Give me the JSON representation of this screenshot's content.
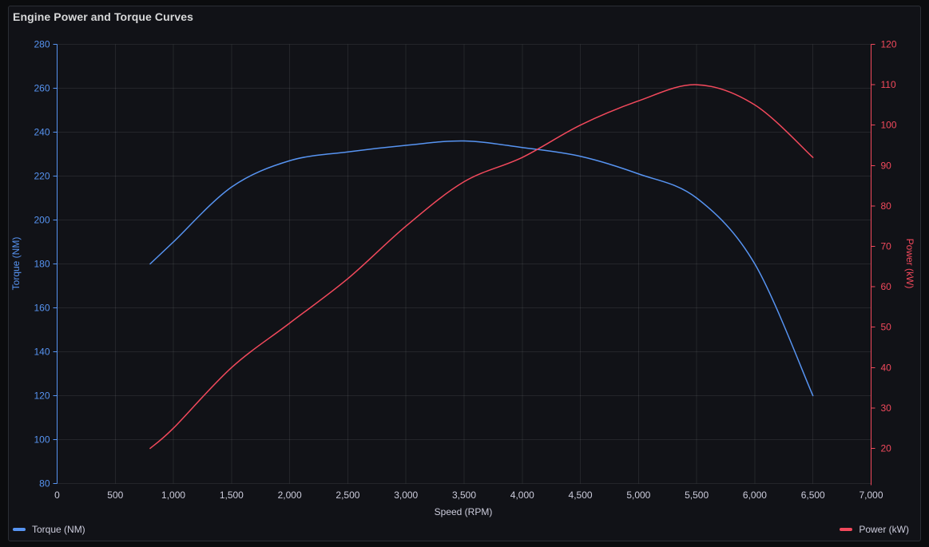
{
  "panel": {
    "title": "Engine Power and Torque Curves"
  },
  "colors": {
    "background_outer": "#0B0C0E",
    "background_panel": "#111217",
    "panel_border": "#2B2E35",
    "grid": "rgba(204,204,220,0.10)",
    "text": "#CCCCDC",
    "title_text": "#D8D9DA",
    "torque_series": "#5794F2",
    "power_series": "#F2495C"
  },
  "legend": {
    "items": [
      {
        "label": "Torque (NM)",
        "color": "#5794F2",
        "marker": "dash-icon"
      },
      {
        "label": "Power (kW)",
        "color": "#F2495C",
        "marker": "dash-icon"
      }
    ]
  },
  "chart_data": {
    "type": "line",
    "title": "Engine Power and Torque Curves",
    "xlabel": "Speed (RPM)",
    "grid": true,
    "legend_position": "bottom",
    "x": [
      800,
      1000,
      1500,
      2000,
      2500,
      3000,
      3500,
      4000,
      4500,
      5000,
      5500,
      6000,
      6500
    ],
    "series": [
      {
        "name": "Torque (NM)",
        "yaxis": "left",
        "color": "#5794F2",
        "values": [
          180,
          190,
          215,
          227,
          231,
          234,
          236,
          233,
          229,
          221,
          210,
          180,
          120
        ]
      },
      {
        "name": "Power (kW)",
        "yaxis": "right",
        "color": "#F2495C",
        "values": [
          20,
          25,
          40,
          51,
          62,
          75,
          86,
          92,
          100,
          106,
          110,
          105,
          92
        ]
      }
    ],
    "x_axis": {
      "label": "Speed (RPM)",
      "min": 0,
      "max": 7000,
      "tick_values": [
        0,
        500,
        1000,
        1500,
        2000,
        2500,
        3000,
        3500,
        4000,
        4500,
        5000,
        5500,
        6000,
        6500,
        7000
      ],
      "tick_labels": [
        "0",
        "500",
        "1,000",
        "1,500",
        "2,000",
        "2,500",
        "3,000",
        "3,500",
        "4,000",
        "4,500",
        "5,000",
        "5,500",
        "6,000",
        "6,500",
        "7,000"
      ]
    },
    "y_left": {
      "label": "Torque (NM)",
      "color": "#5794F2",
      "min": 80,
      "max": 280,
      "tick_values": [
        80,
        100,
        120,
        140,
        160,
        180,
        200,
        220,
        240,
        260,
        280
      ],
      "tick_labels": [
        "80",
        "100",
        "120",
        "140",
        "160",
        "180",
        "200",
        "220",
        "240",
        "260",
        "280"
      ]
    },
    "y_right": {
      "label": "Power (kW)",
      "color": "#F2495C",
      "tick_top": 120,
      "tick_values": [
        20,
        30,
        40,
        50,
        60,
        70,
        80,
        90,
        100,
        110,
        120
      ],
      "tick_labels": [
        "20",
        "30",
        "40",
        "50",
        "60",
        "70",
        "80",
        "90",
        "100",
        "110",
        "120"
      ]
    }
  }
}
